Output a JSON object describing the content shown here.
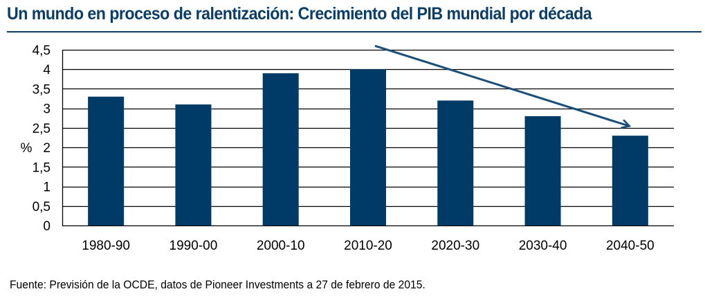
{
  "title": "Un mundo en proceso de ralentización: Crecimiento del PIB mundial por década",
  "source": "Fuente: Previsión de la OCDE, datos de Pioneer Investments a 27 de febrero de 2015.",
  "colors": {
    "title": "#0b3d66",
    "bar": "#003a66",
    "arrow": "#1a4f7a",
    "grid": "#000000"
  },
  "chart_data": {
    "type": "bar",
    "title": "Un mundo en proceso de ralentización: Crecimiento del PIB mundial por década",
    "xlabel": "",
    "ylabel": "%",
    "categories": [
      "1980-90",
      "1990-00",
      "2000-10",
      "2010-20",
      "2020-30",
      "2030-40",
      "2040-50"
    ],
    "values": [
      3.3,
      3.1,
      3.9,
      4.0,
      3.2,
      2.8,
      2.3
    ],
    "ylim": [
      0,
      4.5
    ],
    "yticks": [
      0,
      0.5,
      1,
      1.5,
      2,
      2.5,
      3,
      3.5,
      4,
      4.5
    ],
    "ytick_labels": [
      "0",
      "0,5",
      "1",
      "1,5",
      "2",
      "2,5",
      "3",
      "3,5",
      "4",
      "4,5"
    ],
    "grid": true,
    "legend": "none",
    "annotations": [
      {
        "type": "trend-arrow",
        "from": {
          "category": "2010-20",
          "y": 4.6
        },
        "to": {
          "category": "2040-50",
          "y": 2.55
        }
      }
    ]
  }
}
